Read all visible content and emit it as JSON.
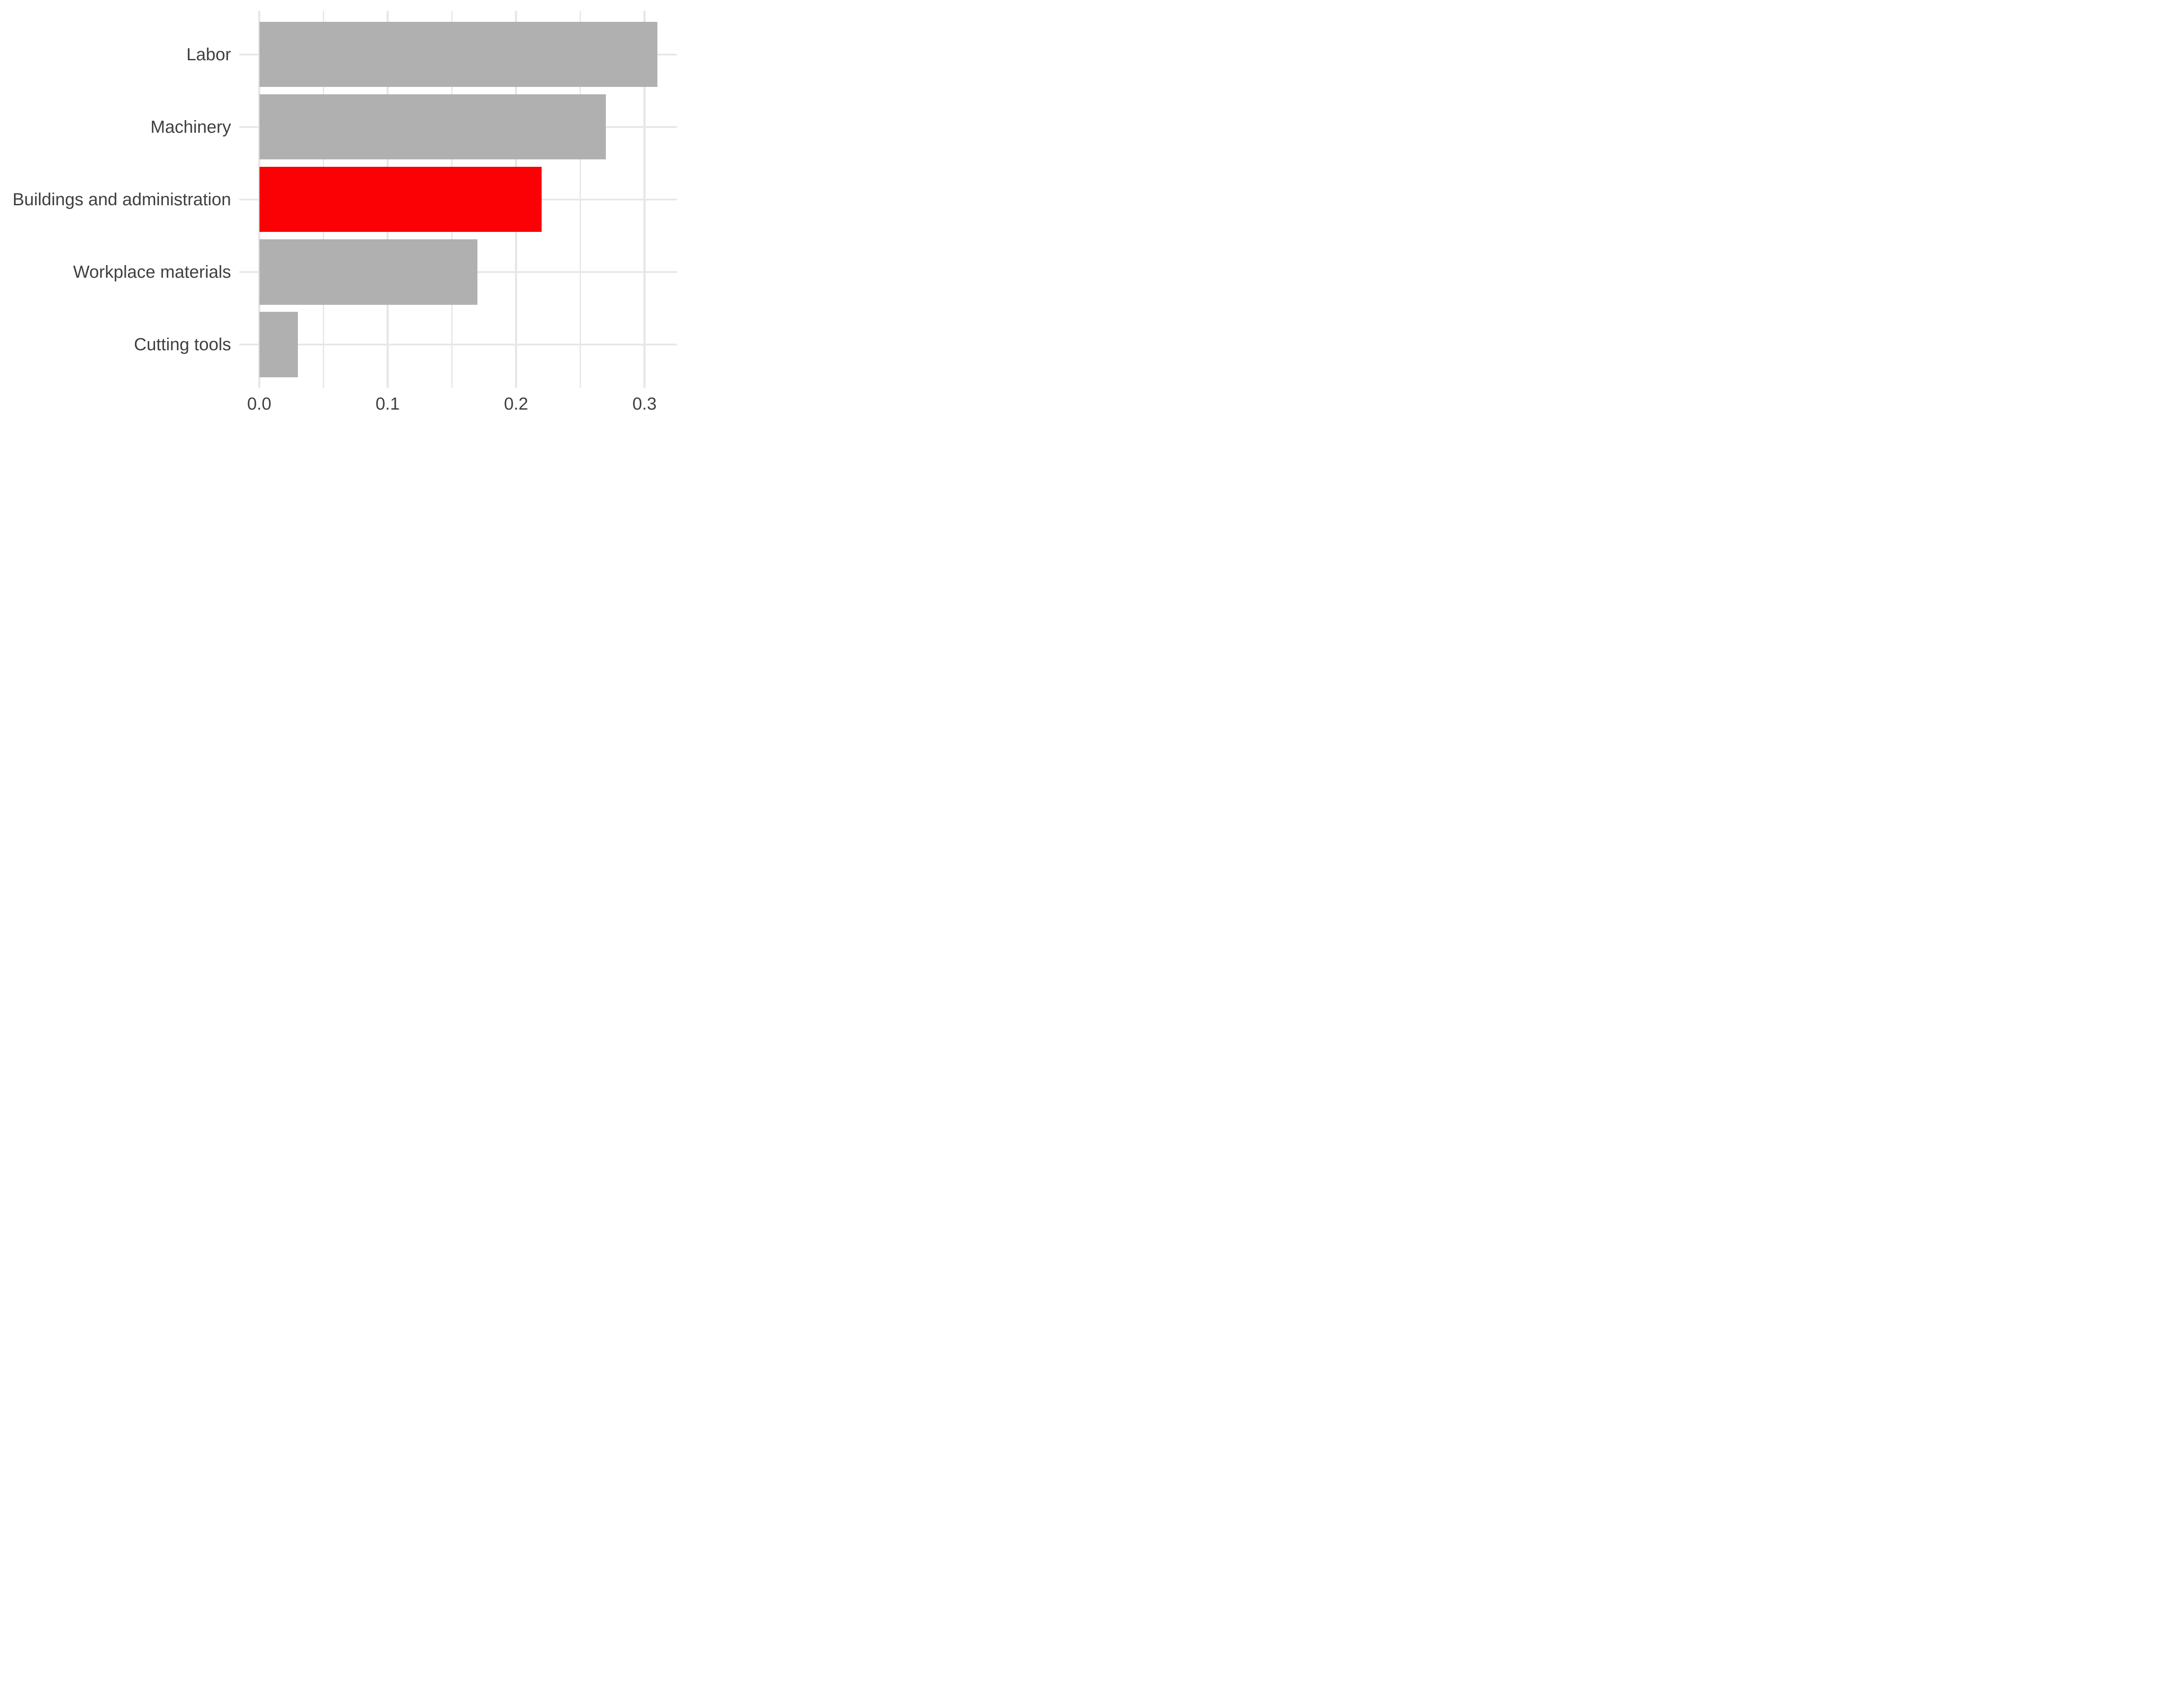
{
  "chart_data": {
    "type": "bar",
    "orientation": "horizontal",
    "title": "",
    "xlabel": "",
    "ylabel": "",
    "categories": [
      "Labor",
      "Machinery",
      "Buildings and administration",
      "Workplace materials",
      "Cutting tools"
    ],
    "values": [
      0.31,
      0.27,
      0.22,
      0.17,
      0.03
    ],
    "highlight_category": "Buildings and administration",
    "highlight_index": 2,
    "x_ticks": [
      {
        "value": 0.0,
        "label": "0.0"
      },
      {
        "value": 0.1,
        "label": "0.1"
      },
      {
        "value": 0.2,
        "label": "0.2"
      },
      {
        "value": 0.3,
        "label": "0.3"
      }
    ],
    "x_minor_ticks": [
      0.05,
      0.15,
      0.25
    ],
    "xlim": [
      -0.0155,
      0.3255
    ],
    "grid": "on",
    "legend": "none",
    "colors": {
      "bar": "#B0B0B0",
      "bar_highlight": "#FB0005",
      "gridline": "#E7E7E7",
      "axis_text": "#404040",
      "background": "#FFFFFF"
    }
  }
}
